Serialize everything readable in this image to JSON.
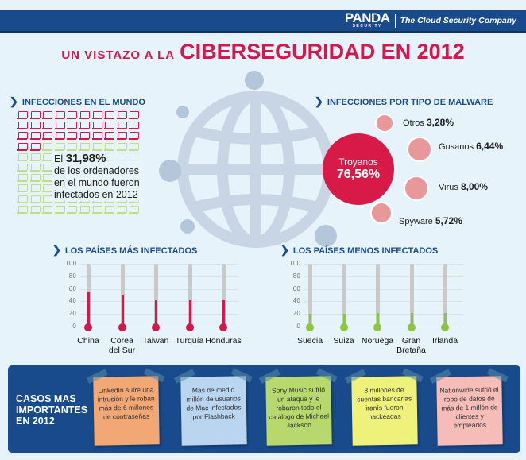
{
  "header": {
    "brand": "PANDA",
    "brand_sub": "SECURITY",
    "tagline": "The Cloud Security Company",
    "colors": {
      "bar": "#184a8c",
      "accent": "#d2184c"
    }
  },
  "title": {
    "prefix": "UN VISTAZO A LA",
    "main": "CIBERSEGURIDAD EN 2012"
  },
  "world": {
    "heading": "INFECCIONES EN EL MUNDO",
    "infected_icons": 32,
    "total_icons": 100,
    "stat_prefix": "El",
    "stat_value": "31,98%",
    "stat_text": "de los ordenadores en el mundo fueron infectados en 2012",
    "colors": {
      "infected": "#d2184c",
      "clean": "#c3dc8a"
    }
  },
  "malware": {
    "heading": "INFECCIONES POR TIPO DE MALWARE",
    "items": [
      {
        "name": "Troyanos",
        "value": "76,56%"
      },
      {
        "name": "Otros",
        "value": "3,28%"
      },
      {
        "name": "Gusanos",
        "value": "6,44%"
      },
      {
        "name": "Virus",
        "value": "8,00%"
      },
      {
        "name": "Spyware",
        "value": "5,72%"
      }
    ]
  },
  "chart_data": [
    {
      "type": "bar",
      "style": "thermometer",
      "title": "LOS PAÍSES MÁS INFECTADOS",
      "categories": [
        "China",
        "Corea del Sur",
        "Taiwan",
        "Turquía",
        "Honduras"
      ],
      "values": [
        54,
        51,
        43,
        42,
        42
      ],
      "ylim": [
        0,
        100
      ],
      "yticks": [
        "0",
        "20",
        "40",
        "60",
        "80",
        "100"
      ],
      "color": "#d2184c",
      "grid": true
    },
    {
      "type": "bar",
      "style": "thermometer",
      "title": "LOS PAÍSES MENOS INFECTADOS",
      "categories": [
        "Suecia",
        "Suiza",
        "Noruega",
        "Gran Bretaña",
        "Irlanda"
      ],
      "values": [
        20,
        20,
        21,
        21,
        22
      ],
      "ylim": [
        0,
        100
      ],
      "yticks": [
        "0",
        "20",
        "40",
        "60",
        "80",
        "100"
      ],
      "color": "#8cc63f",
      "grid": true
    },
    {
      "type": "pie",
      "style": "bubbles",
      "title": "INFECCIONES POR TIPO DE MALWARE",
      "categories": [
        "Troyanos",
        "Otros",
        "Gusanos",
        "Virus",
        "Spyware"
      ],
      "values": [
        76.56,
        3.28,
        6.44,
        8.0,
        5.72
      ]
    }
  ],
  "cases": {
    "title": "CASOS MAS IMPORTANTES EN 2012",
    "notes": [
      {
        "text": "LinkedIn sufre una intrusión y le roban más de 6 millones de contraseñas",
        "color": "#f2a874"
      },
      {
        "text": "Más de medio millón de usuarios de Mac infectados por Flashback",
        "color": "#bad5f0"
      },
      {
        "text": "Sony Music sufrió un ataque y le robaron todo el catálogo de Michael Jackson",
        "color": "#b7d86c"
      },
      {
        "text": "3 millones de cuentas bancarias iranís fueron hackeadas",
        "color": "#eef27a"
      },
      {
        "text": "Nationwide sufrió el robo de datos de más de 1 millón de clientes y empleados",
        "color": "#f5bcb8"
      }
    ]
  }
}
